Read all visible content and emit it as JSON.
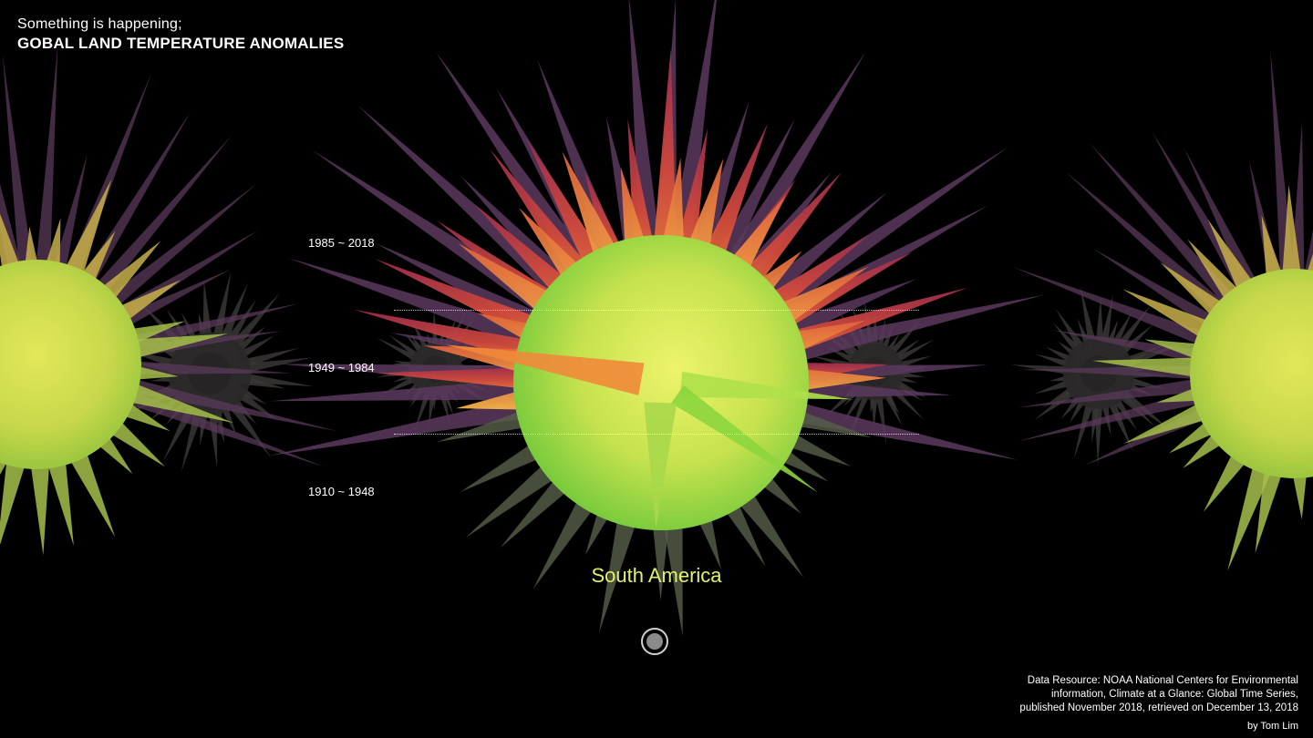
{
  "header": {
    "subtitle": "Something is happening;",
    "title": "GOBAL LAND TEMPERATURE ANOMALIES"
  },
  "eras": {
    "recent": "1985 ~ 2018",
    "middle": "1949 ~ 1984",
    "early": "1910 ~ 1948"
  },
  "region": {
    "selected": "South America"
  },
  "controls": {
    "play_icon": "circle-button-icon"
  },
  "credits": {
    "line1": "Data Resource: NOAA National Centers for Environmental",
    "line2": "information, Climate at a Glance: Global Time Series,",
    "line3": "published November 2018, retrieved on December 13, 2018",
    "author": "by Tom Lim"
  },
  "colors": {
    "background": "#000000",
    "region_label": "#e4f06a",
    "warm": "#e0703a",
    "hot": "#b0304a",
    "mild": "#e8f060",
    "cool": "#80e050"
  }
}
